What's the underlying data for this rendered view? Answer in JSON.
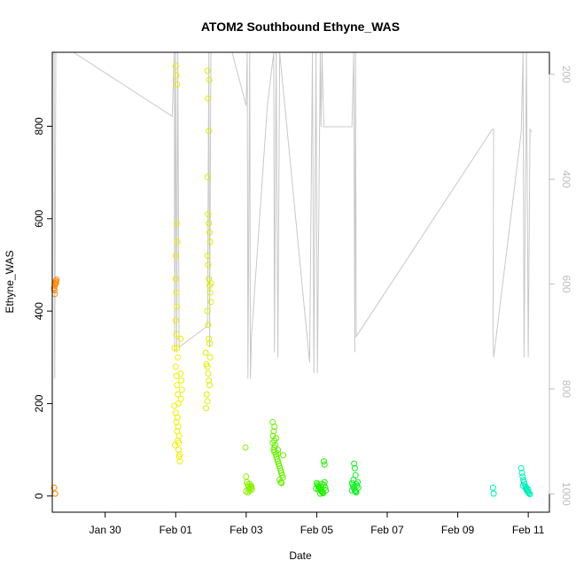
{
  "chart_data": {
    "type": "scatter",
    "title": "ATOM2 Southbound Ethyne_WAS",
    "xlabel": "Date",
    "ylabel": "Ethyne_WAS",
    "x_ticks": [
      "Jan 30",
      "Feb 01",
      "Feb 03",
      "Feb 05",
      "Feb 07",
      "Feb 09",
      "Feb 11"
    ],
    "x_tick_days": [
      30,
      32,
      34,
      36,
      38,
      40,
      42
    ],
    "xlim_days": [
      28.5,
      42.6
    ],
    "ylim": [
      -35,
      960
    ],
    "y_ticks": [
      0,
      200,
      400,
      600,
      800
    ],
    "right_axis": {
      "label": "",
      "ticks": [
        200,
        400,
        600,
        800,
        1000
      ],
      "lim_top_to_bottom": [
        158,
        1035
      ],
      "color": "#bdbdbd"
    },
    "series": [
      {
        "color": "#ff8800",
        "points": [
          [
            28.55,
            450
          ],
          [
            28.57,
            455
          ],
          [
            28.58,
            460
          ],
          [
            28.6,
            465
          ],
          [
            28.62,
            468
          ],
          [
            28.56,
            445
          ],
          [
            28.59,
            458
          ],
          [
            28.61,
            462
          ],
          [
            28.57,
            437
          ],
          [
            28.55,
            18
          ],
          [
            28.58,
            5
          ]
        ]
      },
      {
        "color": "#eeee00",
        "points": [
          [
            32.0,
            930
          ],
          [
            32.02,
            910
          ],
          [
            32.04,
            890
          ],
          [
            32.0,
            470
          ],
          [
            32.02,
            440
          ],
          [
            32.04,
            410
          ],
          [
            32.0,
            380
          ],
          [
            32.02,
            350
          ],
          [
            32.04,
            320
          ],
          [
            32.06,
            300
          ],
          [
            32.0,
            280
          ],
          [
            32.02,
            260
          ],
          [
            32.04,
            240
          ],
          [
            32.06,
            220
          ],
          [
            32.08,
            200
          ],
          [
            32.0,
            180
          ],
          [
            32.02,
            160
          ],
          [
            32.04,
            140
          ],
          [
            32.06,
            120
          ],
          [
            32.08,
            100
          ],
          [
            32.1,
            85
          ],
          [
            32.12,
            75
          ],
          [
            32.03,
            590
          ],
          [
            32.05,
            550
          ],
          [
            32.0,
            520
          ],
          [
            32.14,
            265
          ],
          [
            32.16,
            250
          ],
          [
            32.18,
            230
          ],
          [
            31.98,
            110
          ],
          [
            32.1,
            130
          ],
          [
            32.12,
            90
          ],
          [
            32.14,
            340
          ],
          [
            31.97,
            320
          ],
          [
            32.15,
            210
          ],
          [
            31.96,
            195
          ],
          [
            32.05,
            170
          ],
          [
            32.07,
            150
          ],
          [
            32.09,
            115
          ]
        ]
      },
      {
        "color": "#ddee00",
        "points": [
          [
            32.9,
            920
          ],
          [
            32.95,
            900
          ],
          [
            32.92,
            860
          ],
          [
            32.94,
            790
          ],
          [
            32.9,
            690
          ],
          [
            32.92,
            610
          ],
          [
            32.94,
            590
          ],
          [
            32.96,
            570
          ],
          [
            32.98,
            550
          ],
          [
            32.9,
            520
          ],
          [
            32.92,
            500
          ],
          [
            32.94,
            470
          ],
          [
            32.96,
            455
          ],
          [
            32.98,
            440
          ],
          [
            33.0,
            420
          ],
          [
            32.9,
            400
          ],
          [
            32.92,
            370
          ],
          [
            32.94,
            340
          ],
          [
            32.96,
            330
          ],
          [
            32.98,
            300
          ],
          [
            32.9,
            280
          ],
          [
            32.92,
            265
          ],
          [
            32.94,
            250
          ],
          [
            32.96,
            240
          ],
          [
            32.88,
            220
          ],
          [
            32.9,
            205
          ],
          [
            32.86,
            190
          ],
          [
            33.0,
            460
          ],
          [
            32.85,
            310
          ],
          [
            32.87,
            285
          ]
        ]
      },
      {
        "color": "#88ee00",
        "points": [
          [
            33.98,
            105
          ],
          [
            34.0,
            42
          ],
          [
            34.02,
            30
          ],
          [
            34.04,
            25
          ],
          [
            34.06,
            20
          ],
          [
            34.08,
            15
          ],
          [
            34.1,
            12
          ],
          [
            34.12,
            18
          ],
          [
            34.14,
            22
          ],
          [
            34.16,
            14
          ],
          [
            34.0,
            10
          ],
          [
            34.05,
            8
          ],
          [
            34.1,
            26
          ],
          [
            34.15,
            19
          ]
        ]
      },
      {
        "color": "#66ee00",
        "points": [
          [
            34.75,
            160
          ],
          [
            34.8,
            150
          ],
          [
            34.78,
            140
          ],
          [
            34.76,
            130
          ],
          [
            34.8,
            120
          ],
          [
            34.82,
            110
          ],
          [
            34.78,
            100
          ],
          [
            34.8,
            95
          ],
          [
            34.84,
            90
          ],
          [
            34.86,
            85
          ],
          [
            34.88,
            80
          ],
          [
            34.9,
            75
          ],
          [
            34.92,
            70
          ],
          [
            34.94,
            65
          ],
          [
            34.96,
            60
          ],
          [
            34.98,
            55
          ],
          [
            35.0,
            50
          ],
          [
            35.02,
            45
          ],
          [
            35.04,
            40
          ],
          [
            34.95,
            35
          ],
          [
            34.98,
            30
          ],
          [
            35.0,
            28
          ],
          [
            34.85,
            125
          ],
          [
            34.9,
            100
          ],
          [
            34.75,
            115
          ],
          [
            34.8,
            105
          ],
          [
            35.05,
            88
          ],
          [
            34.9,
            92
          ]
        ]
      },
      {
        "color": "#22ee00",
        "points": [
          [
            36.0,
            28
          ],
          [
            36.02,
            25
          ],
          [
            36.04,
            22
          ],
          [
            36.06,
            20
          ],
          [
            36.08,
            18
          ],
          [
            36.1,
            15
          ],
          [
            36.12,
            12
          ],
          [
            36.14,
            10
          ],
          [
            36.16,
            8
          ],
          [
            36.18,
            6
          ],
          [
            36.2,
            24
          ],
          [
            36.22,
            30
          ],
          [
            36.24,
            18
          ],
          [
            36.1,
            5
          ],
          [
            36.05,
            14
          ],
          [
            36.12,
            20
          ],
          [
            36.2,
            75
          ],
          [
            36.22,
            68
          ],
          [
            36.26,
            12
          ],
          [
            36.15,
            26
          ],
          [
            35.98,
            16
          ]
        ]
      },
      {
        "color": "#11ee22",
        "points": [
          [
            37.0,
            28
          ],
          [
            37.02,
            24
          ],
          [
            37.04,
            20
          ],
          [
            37.06,
            16
          ],
          [
            37.08,
            12
          ],
          [
            37.1,
            10
          ],
          [
            37.12,
            8
          ],
          [
            37.14,
            22
          ],
          [
            37.16,
            30
          ],
          [
            37.18,
            18
          ],
          [
            37.06,
            70
          ],
          [
            37.08,
            60
          ],
          [
            37.1,
            45
          ],
          [
            37.04,
            35
          ],
          [
            37.0,
            12
          ],
          [
            37.12,
            26
          ]
        ]
      },
      {
        "color": "#00eebb",
        "points": [
          [
            41.0,
            18
          ],
          [
            41.02,
            5
          ],
          [
            41.8,
            60
          ],
          [
            41.82,
            50
          ],
          [
            41.84,
            42
          ],
          [
            41.86,
            35
          ],
          [
            41.88,
            30
          ],
          [
            41.9,
            25
          ],
          [
            41.92,
            20
          ],
          [
            41.94,
            15
          ],
          [
            41.96,
            12
          ],
          [
            41.98,
            10
          ],
          [
            42.0,
            8
          ],
          [
            42.02,
            6
          ],
          [
            41.85,
            22
          ],
          [
            41.95,
            18
          ],
          [
            42.05,
            4
          ],
          [
            42.0,
            14
          ]
        ]
      }
    ],
    "aux_line": {
      "color": "#c8c8c8",
      "points_right_axis": [
        [
          28.55,
          158
        ],
        [
          28.57,
          780
        ],
        [
          28.6,
          158
        ],
        [
          29.1,
          158
        ],
        [
          31.9,
          280
        ],
        [
          31.96,
          158
        ],
        [
          31.97,
          730
        ],
        [
          32.0,
          158
        ],
        [
          32.03,
          730
        ],
        [
          32.06,
          158
        ],
        [
          32.1,
          720
        ],
        [
          32.9,
          680
        ],
        [
          32.94,
          158
        ],
        [
          32.96,
          720
        ],
        [
          33.0,
          158
        ],
        [
          33.6,
          158
        ],
        [
          34.0,
          260
        ],
        [
          34.03,
          158
        ],
        [
          34.05,
          780
        ],
        [
          34.1,
          158
        ],
        [
          34.12,
          780
        ],
        [
          34.15,
          700
        ],
        [
          34.6,
          260
        ],
        [
          34.78,
          158
        ],
        [
          34.8,
          730
        ],
        [
          34.85,
          158
        ],
        [
          34.9,
          740
        ],
        [
          34.95,
          158
        ],
        [
          35.8,
          750
        ],
        [
          35.88,
          158
        ],
        [
          35.92,
          770
        ],
        [
          35.98,
          158
        ],
        [
          36.02,
          770
        ],
        [
          36.1,
          158
        ],
        [
          36.12,
          300
        ],
        [
          36.15,
          158
        ],
        [
          36.2,
          300
        ],
        [
          36.22,
          300
        ],
        [
          37.0,
          300
        ],
        [
          37.05,
          158
        ],
        [
          37.08,
          730
        ],
        [
          37.1,
          158
        ],
        [
          37.12,
          700
        ],
        [
          40.98,
          305
        ],
        [
          41.02,
          305
        ],
        [
          41.0,
          700
        ],
        [
          41.02,
          740
        ],
        [
          41.8,
          310
        ],
        [
          41.85,
          158
        ],
        [
          41.88,
          740
        ],
        [
          41.95,
          158
        ],
        [
          42.0,
          740
        ],
        [
          42.05,
          305
        ],
        [
          42.1,
          310
        ],
        [
          42.1,
          310
        ]
      ]
    }
  }
}
